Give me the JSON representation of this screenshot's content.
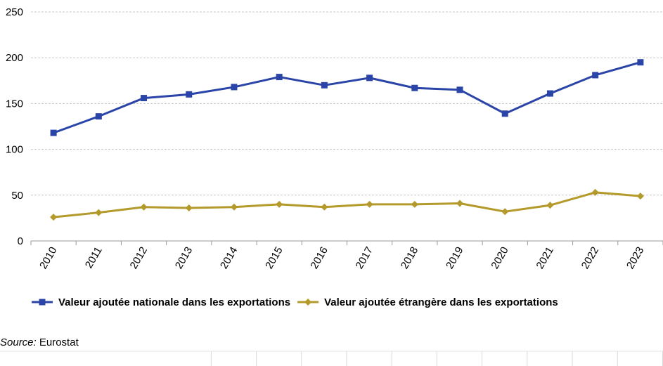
{
  "chart_data": {
    "type": "line",
    "categories": [
      "2010",
      "2011",
      "2012",
      "2013",
      "2014",
      "2015",
      "2016",
      "2017",
      "2018",
      "2019",
      "2020",
      "2021",
      "2022",
      "2023"
    ],
    "ylim": [
      0,
      250
    ],
    "yticks": [
      0,
      50,
      100,
      150,
      200,
      250
    ],
    "grid": "horizontal dashed",
    "legend_placement": "bottom-left",
    "series": [
      {
        "name": "Valeur ajoutée nationale dans les exportations",
        "color": "#2a44a8",
        "marker": "square",
        "values": [
          118,
          136,
          156,
          160,
          168,
          179,
          170,
          178,
          167,
          165,
          139,
          161,
          181,
          195
        ]
      },
      {
        "name": "Valeur ajoutée étrangère dans les exportations",
        "color": "#b39a2a",
        "marker": "diamond",
        "values": [
          26,
          31,
          37,
          36,
          37,
          40,
          37,
          40,
          40,
          41,
          32,
          39,
          53,
          49
        ]
      }
    ]
  },
  "source": {
    "label": "Source:",
    "text": "Eurostat"
  }
}
